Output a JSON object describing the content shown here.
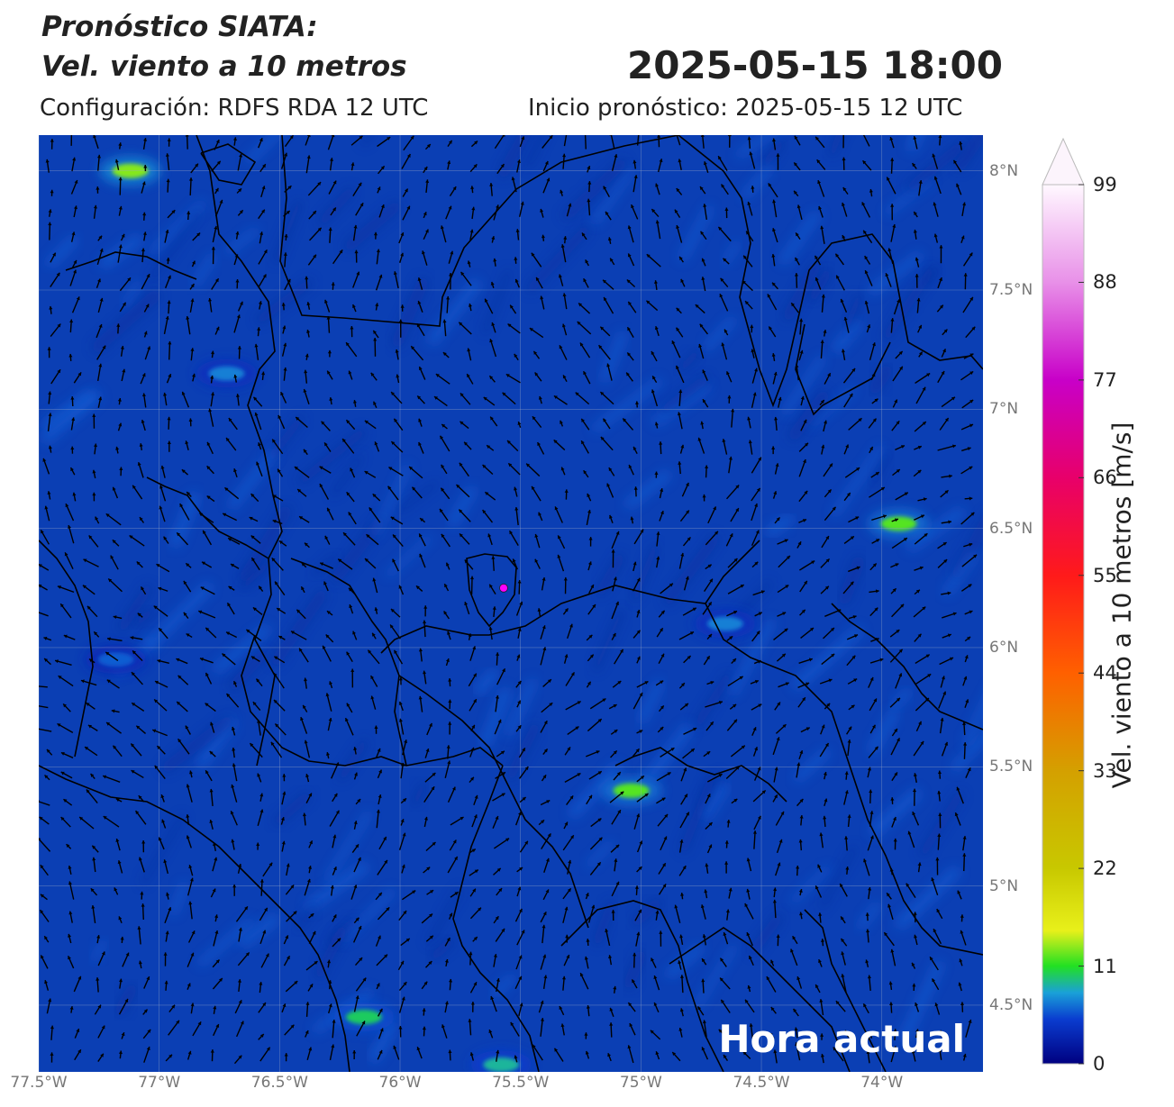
{
  "title_line1": "Pronóstico SIATA:",
  "title_line2": "Vel. viento a 10 metros",
  "datetime": "2025-05-15 18:00",
  "config": "Configuración: RDFS RDA 12 UTC",
  "init": "Inicio pronóstico: 2025-05-15 12 UTC",
  "now_label": "Hora actual",
  "map": {
    "lon_range": [
      -77.5,
      -73.58
    ],
    "lat_range": [
      4.22,
      8.15
    ],
    "lat_ticks": [
      "8°N",
      "7.5°N",
      "7°N",
      "6.5°N",
      "6°N",
      "5.5°N",
      "5°N",
      "4.5°N"
    ],
    "lat_values": [
      8,
      7.5,
      7,
      6.5,
      6,
      5.5,
      5,
      4.5
    ],
    "lon_ticks": [
      "77.5°W",
      "77°W",
      "76.5°W",
      "76°W",
      "75.5°W",
      "75°W",
      "74.5°W",
      "74°W"
    ],
    "lon_values": [
      -77.5,
      -77,
      -76.5,
      -76,
      -75.5,
      -75,
      -74.5,
      -74
    ],
    "marker_point": {
      "lon": -75.57,
      "lat": 6.25,
      "color": "#ff00ff"
    },
    "background_color": "#0b3fb4",
    "hotspots": [
      {
        "lon": -77.12,
        "lat": 8.0,
        "speed": 13
      },
      {
        "lon": -73.93,
        "lat": 6.52,
        "speed": 12
      },
      {
        "lon": -75.04,
        "lat": 5.4,
        "speed": 12
      },
      {
        "lon": -76.15,
        "lat": 4.45,
        "speed": 10
      },
      {
        "lon": -75.58,
        "lat": 4.25,
        "speed": 9
      },
      {
        "lon": -76.72,
        "lat": 7.15,
        "speed": 7
      },
      {
        "lon": -77.18,
        "lat": 5.95,
        "speed": 6
      },
      {
        "lon": -74.65,
        "lat": 6.1,
        "speed": 7
      }
    ]
  },
  "colorbar": {
    "label": "Vel. viento a 10 metros [m/s]",
    "ticks": [
      "0",
      "11",
      "22",
      "33",
      "44",
      "55",
      "66",
      "77",
      "88",
      "99"
    ],
    "tick_values": [
      0,
      11,
      22,
      33,
      44,
      55,
      66,
      77,
      88,
      99
    ],
    "range": [
      0,
      99
    ],
    "extend": "max",
    "stops": [
      {
        "value": 0,
        "color": "#000080"
      },
      {
        "value": 5,
        "color": "#0a3ccf"
      },
      {
        "value": 8,
        "color": "#1aa0d8"
      },
      {
        "value": 11,
        "color": "#22e022"
      },
      {
        "value": 15,
        "color": "#e8f01a"
      },
      {
        "value": 22,
        "color": "#c8c800"
      },
      {
        "value": 33,
        "color": "#d4a000"
      },
      {
        "value": 44,
        "color": "#ff6000"
      },
      {
        "value": 55,
        "color": "#ff1a1a"
      },
      {
        "value": 66,
        "color": "#e8006a"
      },
      {
        "value": 77,
        "color": "#c800c8"
      },
      {
        "value": 88,
        "color": "#e890e8"
      },
      {
        "value": 99,
        "color": "#fff8ff"
      }
    ]
  }
}
